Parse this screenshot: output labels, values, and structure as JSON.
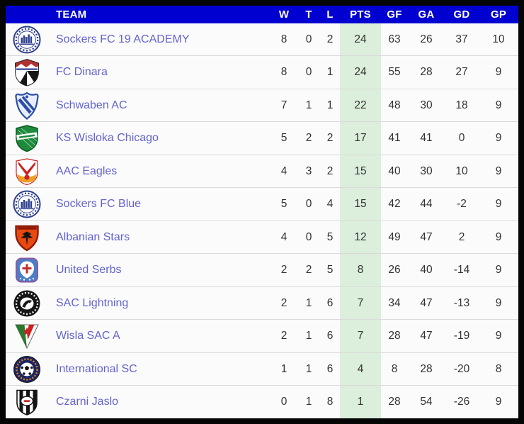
{
  "colors": {
    "header_bg": "#0000d1",
    "pts_column_bg": "#dceedc",
    "team_link": "#6363cd",
    "frame": "#050505",
    "row_bg": "#fbfbfb",
    "separator": "#dadada",
    "number_text": "#323232"
  },
  "header": {
    "team": "TEAM",
    "w": "W",
    "t": "T",
    "l": "L",
    "pts": "PTS",
    "gf": "GF",
    "ga": "GA",
    "gd": "GD",
    "gp": "GP"
  },
  "teams": [
    {
      "name": "Sockers FC 19 ACADEMY",
      "w": "8",
      "t": "0",
      "l": "2",
      "pts": "24",
      "gf": "63",
      "ga": "26",
      "gd": "37",
      "gp": "10",
      "logo": {
        "kind": "sockers",
        "icon": "sockers-fc-crest-icon",
        "colors": [
          "#2d3f8e",
          "#ffffff"
        ]
      }
    },
    {
      "name": "FC Dinara",
      "w": "8",
      "t": "0",
      "l": "1",
      "pts": "24",
      "gf": "55",
      "ga": "28",
      "gd": "27",
      "gp": "9",
      "logo": {
        "kind": "dinara",
        "icon": "fc-dinara-shield-icon",
        "colors": [
          "#b23232",
          "#2e3f90",
          "#161616",
          "#ffffff"
        ]
      }
    },
    {
      "name": "Schwaben AC",
      "w": "7",
      "t": "1",
      "l": "1",
      "pts": "22",
      "gf": "48",
      "ga": "30",
      "gd": "18",
      "gp": "9",
      "logo": {
        "kind": "schwaben",
        "icon": "schwaben-ac-crest-icon",
        "colors": [
          "#2c4ea8",
          "#e8eefa"
        ]
      }
    },
    {
      "name": "KS Wisloka Chicago",
      "w": "5",
      "t": "2",
      "l": "2",
      "pts": "17",
      "gf": "41",
      "ga": "41",
      "gd": "0",
      "gp": "9",
      "logo": {
        "kind": "wisloka",
        "icon": "ks-wisloka-shield-icon",
        "colors": [
          "#1e8a3c",
          "#ffffff",
          "#0d5c22"
        ]
      }
    },
    {
      "name": "AAC Eagles",
      "w": "4",
      "t": "3",
      "l": "2",
      "pts": "15",
      "gf": "40",
      "ga": "30",
      "gd": "10",
      "gp": "9",
      "logo": {
        "kind": "aac",
        "icon": "aac-eagles-crest-icon",
        "colors": [
          "#cc2222",
          "#f0a028",
          "#ffffff"
        ]
      }
    },
    {
      "name": "Sockers FC Blue",
      "w": "5",
      "t": "0",
      "l": "4",
      "pts": "15",
      "gf": "42",
      "ga": "44",
      "gd": "-2",
      "gp": "9",
      "logo": {
        "kind": "sockers",
        "icon": "sockers-fc-crest-icon",
        "colors": [
          "#2d3f8e",
          "#ffffff"
        ]
      }
    },
    {
      "name": "Albanian Stars",
      "w": "4",
      "t": "0",
      "l": "5",
      "pts": "12",
      "gf": "49",
      "ga": "47",
      "gd": "2",
      "gp": "9",
      "logo": {
        "kind": "albanian",
        "icon": "albanian-stars-shield-icon",
        "colors": [
          "#e8490f",
          "#8f1a08",
          "#141414"
        ]
      }
    },
    {
      "name": "United Serbs",
      "w": "2",
      "t": "2",
      "l": "5",
      "pts": "8",
      "gf": "26",
      "ga": "40",
      "gd": "-14",
      "gp": "9",
      "logo": {
        "kind": "serbs",
        "icon": "united-serbs-shield-icon",
        "colors": [
          "#4a7ec8",
          "#ffffff",
          "#c03030",
          "#8a5aa0"
        ]
      }
    },
    {
      "name": "SAC Lightning",
      "w": "2",
      "t": "1",
      "l": "6",
      "pts": "7",
      "gf": "34",
      "ga": "47",
      "gd": "-13",
      "gp": "9",
      "logo": {
        "kind": "sac",
        "icon": "sac-lightning-roundel-icon",
        "colors": [
          "#151515",
          "#ffffff"
        ]
      }
    },
    {
      "name": "Wisla SAC A",
      "w": "2",
      "t": "1",
      "l": "6",
      "pts": "7",
      "gf": "28",
      "ga": "47",
      "gd": "-19",
      "gp": "9",
      "logo": {
        "kind": "wisla",
        "icon": "wisla-sac-triangle-icon",
        "colors": [
          "#2a7a2e",
          "#ffffff",
          "#cc2222"
        ]
      }
    },
    {
      "name": "International SC",
      "w": "1",
      "t": "1",
      "l": "6",
      "pts": "4",
      "gf": "8",
      "ga": "28",
      "gd": "-20",
      "gp": "8",
      "logo": {
        "kind": "intl",
        "icon": "international-sc-roundel-icon",
        "colors": [
          "#1a2560",
          "#e08020",
          "#ffffff",
          "#141414"
        ]
      }
    },
    {
      "name": "Czarni Jaslo",
      "w": "0",
      "t": "1",
      "l": "8",
      "pts": "1",
      "gf": "28",
      "ga": "54",
      "gd": "-26",
      "gp": "9",
      "logo": {
        "kind": "czarni",
        "icon": "czarni-jaslo-shield-icon",
        "colors": [
          "#141414",
          "#ffffff",
          "#c03030"
        ]
      }
    }
  ]
}
